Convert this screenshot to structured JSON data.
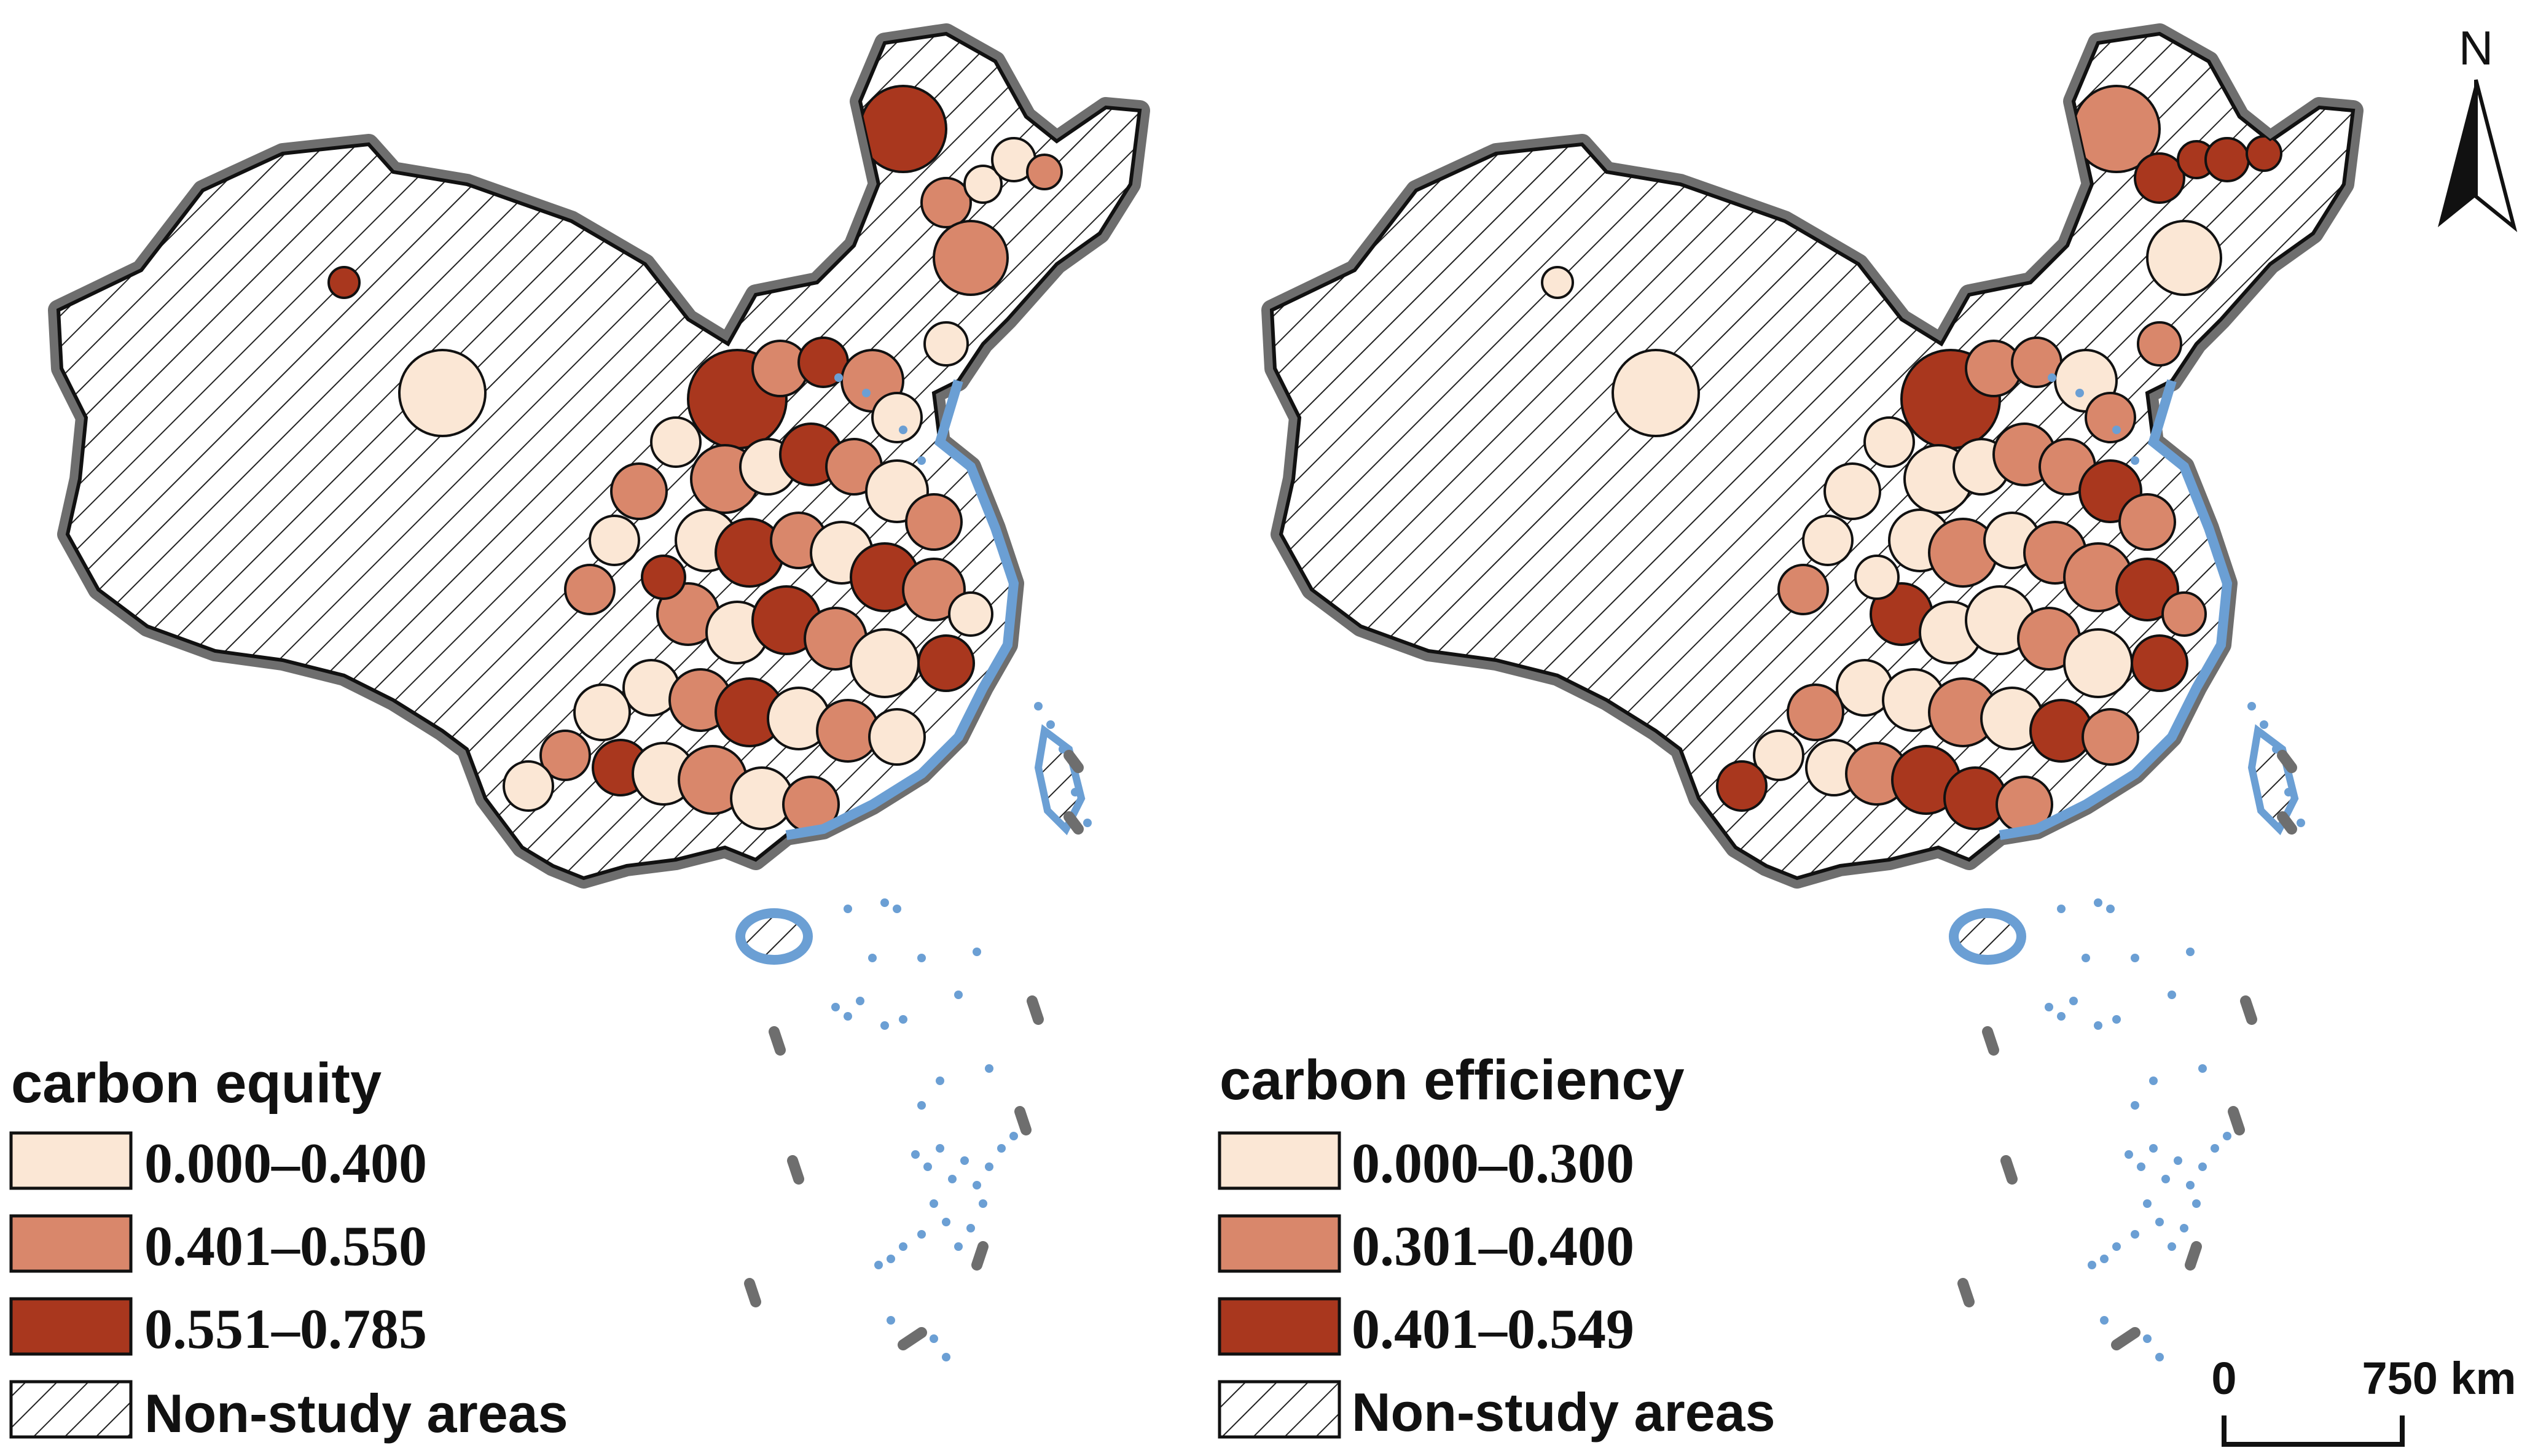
{
  "maps": [
    {
      "id": "equity",
      "legend": {
        "title": "carbon equity",
        "classes": [
          {
            "label": "0.000–0.400",
            "color": "#fbe7d5"
          },
          {
            "label": "0.401–0.550",
            "color": "#d9876b"
          },
          {
            "label": "0.551–0.785",
            "color": "#a9371e"
          }
        ],
        "non_study_label": "Non-study areas"
      }
    },
    {
      "id": "efficiency",
      "legend": {
        "title": "carbon efficiency",
        "classes": [
          {
            "label": "0.000–0.300",
            "color": "#fbe7d5"
          },
          {
            "label": "0.301–0.400",
            "color": "#d9876b"
          },
          {
            "label": "0.401–0.549",
            "color": "#a9371e"
          }
        ],
        "non_study_label": "Non-study areas"
      }
    }
  ],
  "north_arrow": {
    "label": "N"
  },
  "scale_bar": {
    "start_label": "0",
    "end_label": "750 km"
  },
  "colors": {
    "border": "#6e6e6e",
    "coast": "#6b9fd4",
    "hatch": "#222222"
  }
}
